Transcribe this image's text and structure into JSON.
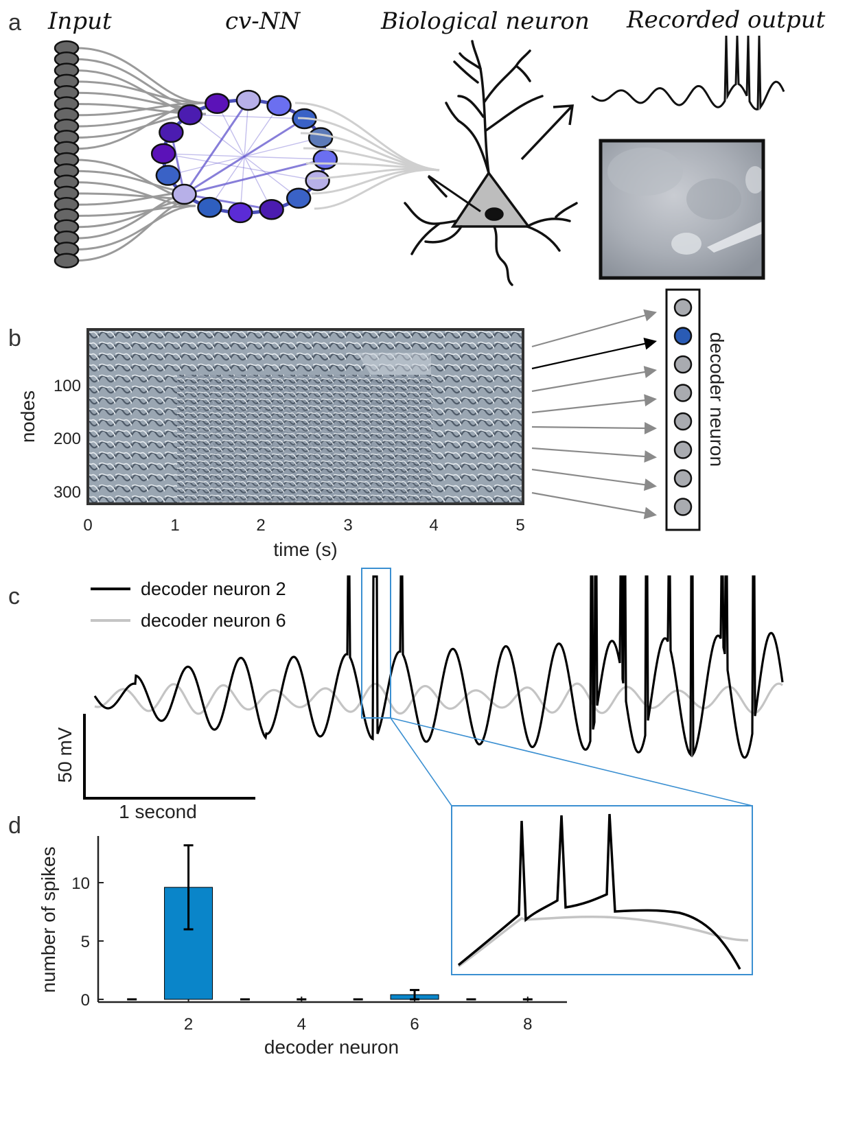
{
  "panels": {
    "a": {
      "letter": "a",
      "labels": {
        "input": "Input",
        "cvnn": "cv-NN",
        "bio": "Biological neuron",
        "recorded": "Recorded output"
      }
    },
    "b": {
      "letter": "b",
      "ylabel": "nodes",
      "xlabel": "time (s)",
      "yticks": [
        "100",
        "200",
        "300"
      ],
      "xticks": [
        "0",
        "1",
        "2",
        "3",
        "4",
        "5"
      ],
      "decoder_label": "decoder neuron",
      "decoder_count": 8,
      "active_decoder": 2,
      "colors": {
        "active": "#2a5bb5",
        "inactive": "#a9abb0"
      }
    },
    "c": {
      "letter": "c",
      "legend": [
        "decoder neuron 2",
        "decoder neuron 6"
      ],
      "scale_v": "50 mV",
      "scale_t": "1 second",
      "colors": {
        "n2": "#000000",
        "n6": "#c4c4c4",
        "zoom": "#3a8fd1"
      }
    },
    "d": {
      "letter": "d"
    }
  },
  "chart_data": {
    "type": "bar",
    "categories": [
      "1",
      "2",
      "3",
      "4",
      "5",
      "6",
      "7",
      "8"
    ],
    "values": [
      0,
      9.6,
      0,
      0,
      0,
      0.4,
      0,
      0
    ],
    "errors": [
      0,
      3.6,
      0,
      0,
      0,
      0.4,
      0,
      0
    ],
    "xticks": [
      "2",
      "4",
      "6",
      "8"
    ],
    "yticks": [
      "0",
      "5",
      "10"
    ],
    "xlabel": "decoder neuron",
    "ylabel": "number of spikes",
    "ylim": [
      0,
      14
    ],
    "bar_color": "#0a85c9"
  }
}
